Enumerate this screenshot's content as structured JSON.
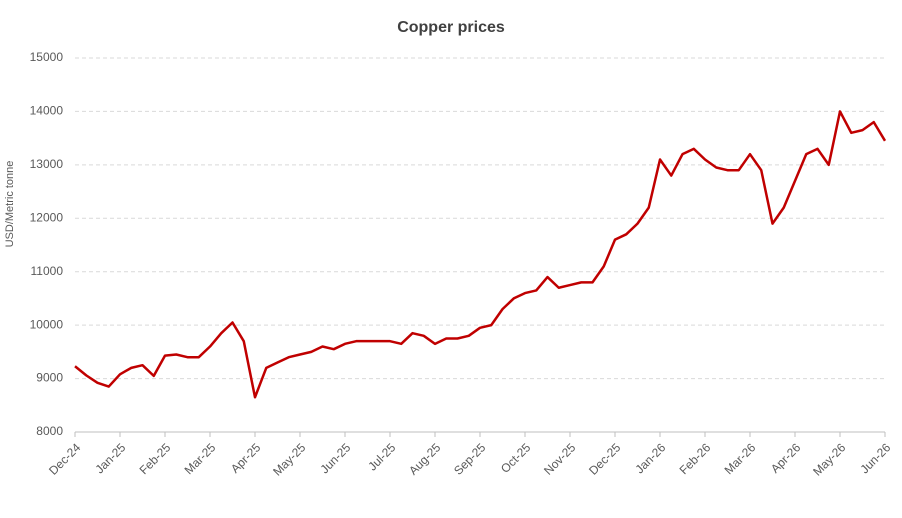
{
  "chart_data": {
    "type": "line",
    "title": "Copper prices",
    "y_label": "USD/Metric tonne",
    "categories": [
      "Dec-24",
      null,
      null,
      null,
      "Jan-25",
      null,
      null,
      null,
      "Feb-25",
      null,
      null,
      null,
      "Mar-25",
      null,
      null,
      null,
      "Apr-25",
      null,
      null,
      null,
      "May-25",
      null,
      null,
      null,
      "Jun-25",
      null,
      null,
      null,
      "Jul-25",
      null,
      null,
      null,
      "Aug-25",
      null,
      null,
      null,
      "Sep-25",
      null,
      null,
      null,
      "Oct-25",
      null,
      null,
      null,
      "Nov-25",
      null,
      null,
      null,
      "Dec-25",
      null,
      null,
      null,
      "Jan-26",
      null,
      null,
      null,
      "Feb-26",
      null,
      null,
      null,
      "Mar-26",
      null,
      null,
      null,
      "Apr-26",
      null,
      null,
      null,
      "May-26",
      null,
      null,
      null,
      "Jun-26"
    ],
    "series": [
      {
        "name": "Copper",
        "color": "#c00000",
        "values": [
          9230,
          9060,
          8920,
          8850,
          9080,
          9200,
          9250,
          9050,
          9430,
          9450,
          9400,
          9400,
          9600,
          9850,
          10050,
          9700,
          8650,
          9200,
          9300,
          9400,
          9450,
          9500,
          9600,
          9550,
          9650,
          9700,
          9700,
          9700,
          9700,
          9650,
          9850,
          9800,
          9650,
          9750,
          9750,
          9800,
          9950,
          10000,
          10300,
          10500,
          10600,
          10650,
          10900,
          10700,
          10750,
          10800,
          10800,
          11100,
          11600,
          11700,
          11900,
          12200,
          13100,
          12800,
          13200,
          13300,
          13100,
          12950,
          12900,
          12900,
          13200,
          12900,
          11900,
          12200,
          12700,
          13200,
          13300,
          13000,
          14000,
          13600,
          13650,
          13800,
          13450
        ]
      }
    ],
    "ylim": [
      8000,
      15000
    ],
    "yticks": [
      8000,
      9000,
      10000,
      11000,
      12000,
      13000,
      14000,
      15000
    ],
    "grid": true
  }
}
